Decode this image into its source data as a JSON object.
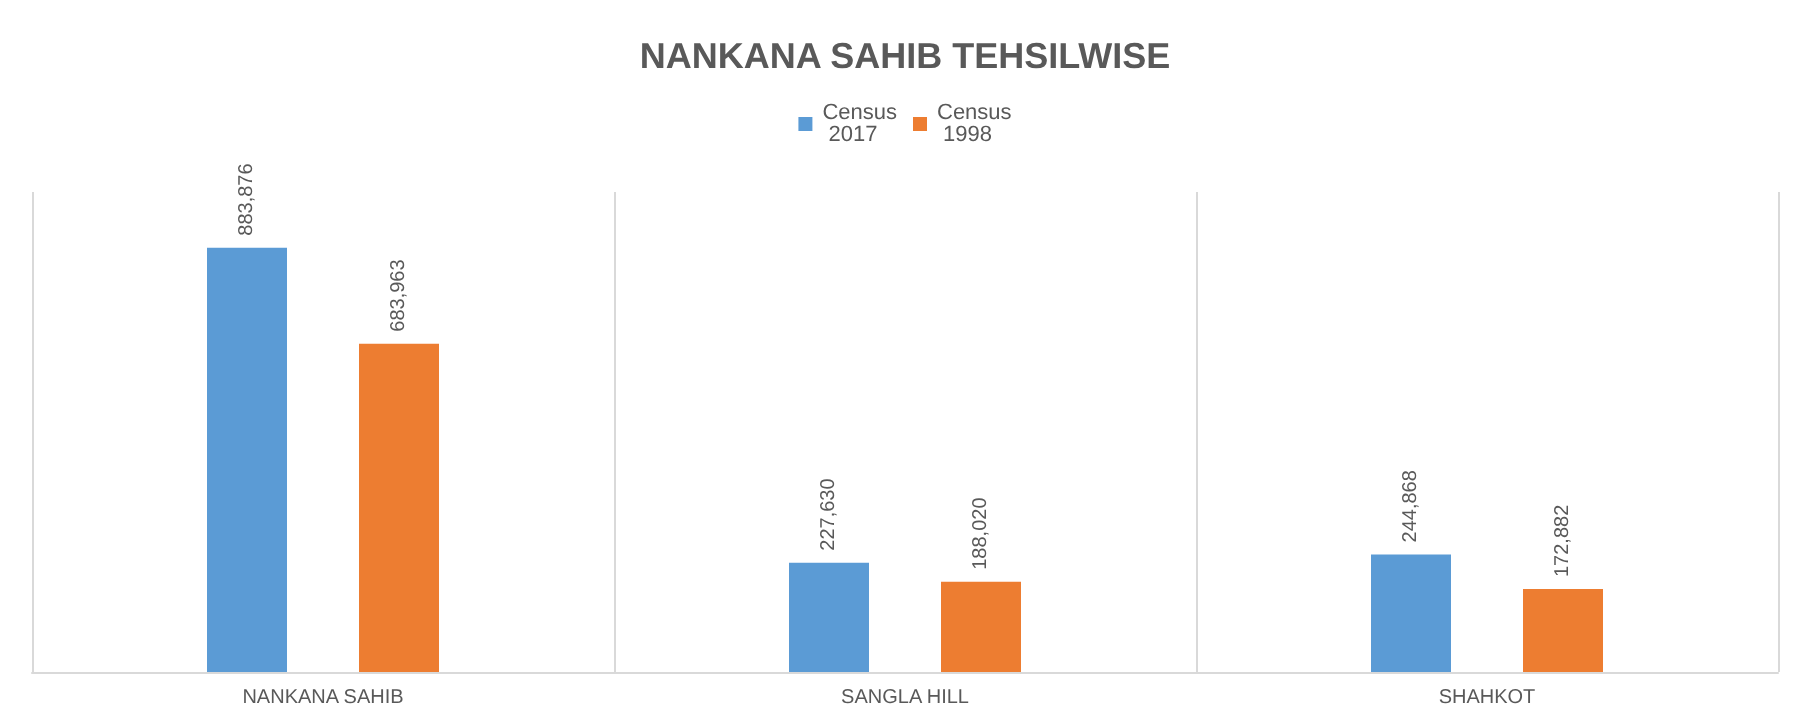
{
  "chart_data": {
    "type": "bar",
    "title": "NANKANA SAHIB TEHSILWISE",
    "categories": [
      "NANKANA SAHIB",
      "SANGLA HILL",
      "SHAHKOT"
    ],
    "series": [
      {
        "name": "Census 2017",
        "color": "#5b9bd5",
        "values": [
          883876,
          227630,
          244868
        ],
        "value_labels": [
          "883,876",
          "227,630",
          "244,868"
        ]
      },
      {
        "name": "Census 1998",
        "color": "#ed7d31",
        "values": [
          683963,
          188020,
          172882
        ],
        "value_labels": [
          "683,963",
          "188,020",
          "172,882"
        ]
      }
    ],
    "grid": "x",
    "legend": "top",
    "tick_labels": "x"
  }
}
